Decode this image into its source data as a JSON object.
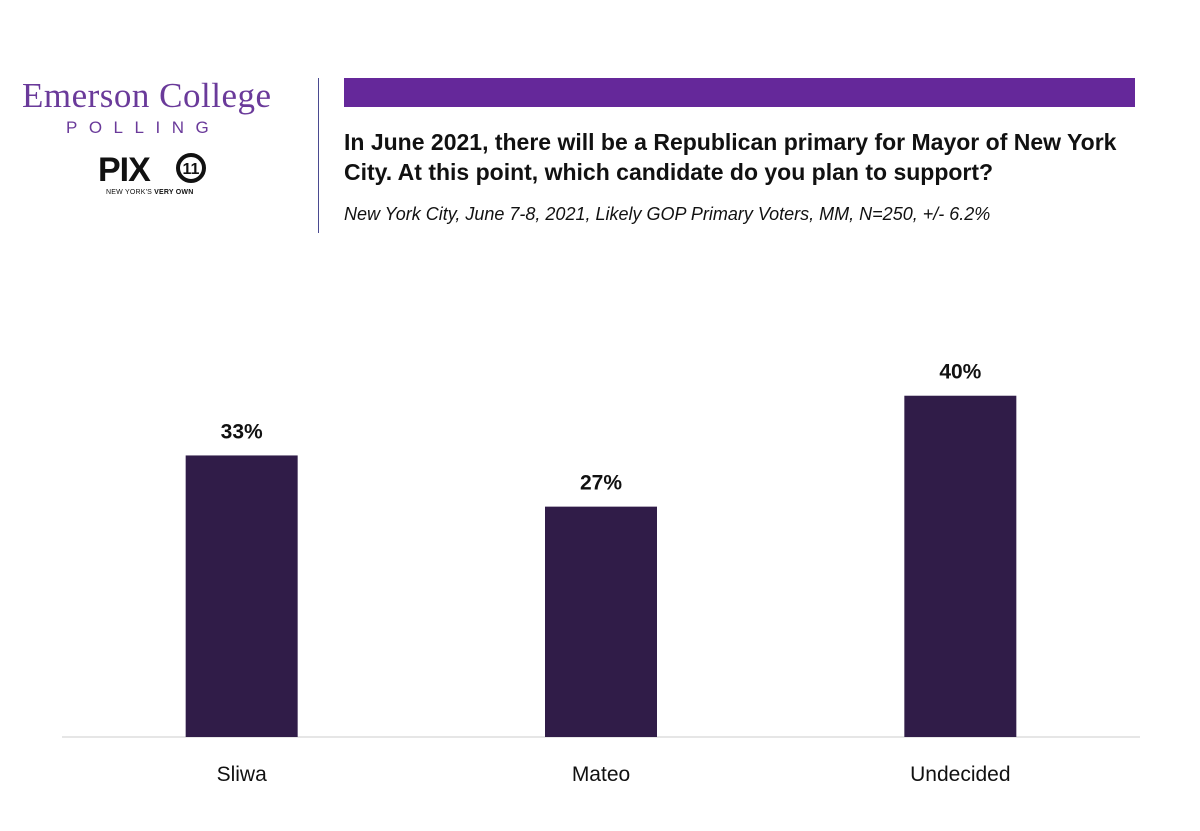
{
  "branding": {
    "logo_title": "Emerson College",
    "logo_subtitle": "POLLING",
    "partner_name": "PIX",
    "partner_number": "11",
    "partner_tagline_prefix": "NEW YORK'S",
    "partner_tagline_bold": "VERY OWN"
  },
  "colors": {
    "brand_purple": "#6a3a9a",
    "header_bar": "#65289a",
    "bar_fill": "#301c48",
    "axis": "#cccccc"
  },
  "header": {
    "question": "In June 2021, there will be a Republican primary for Mayor of New York City. At this point, which candidate do you plan to support?",
    "subtitle": "New York City, June 7-8, 2021, Likely GOP Primary Voters, MM, N=250, +/- 6.2%"
  },
  "chart_data": {
    "type": "bar",
    "categories": [
      "Sliwa",
      "Mateo",
      "Undecided"
    ],
    "values": [
      33,
      27,
      40
    ],
    "value_labels": [
      "33%",
      "27%",
      "40%"
    ],
    "unit": "%",
    "ylim": [
      0,
      47
    ],
    "grid": false,
    "legend": "none"
  }
}
